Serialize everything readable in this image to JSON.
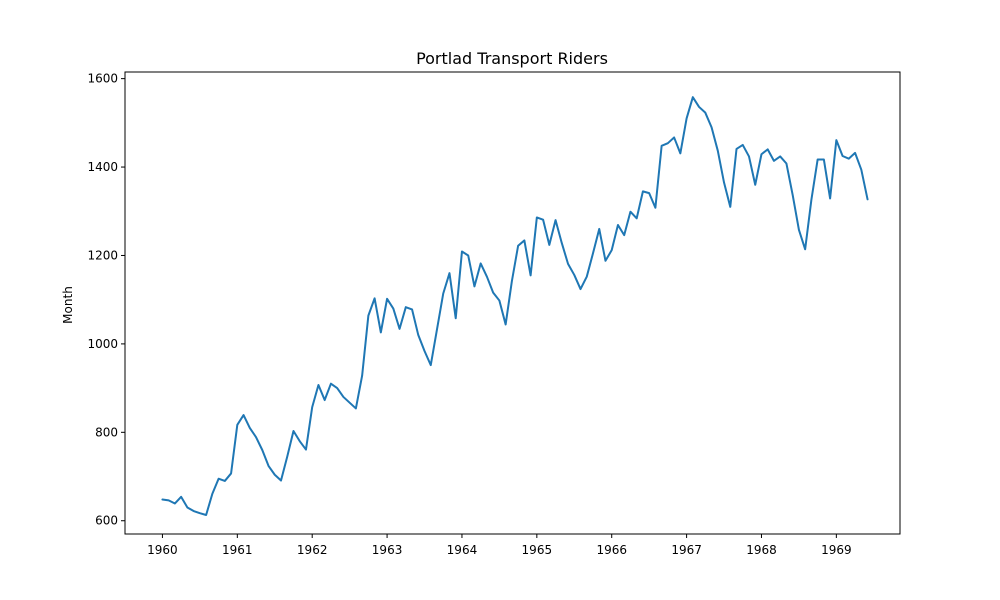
{
  "chart_data": {
    "type": "line",
    "title": "Portlad Transport Riders",
    "xlabel": "",
    "ylabel": "Month",
    "xlim": [
      1959.5,
      1969.85
    ],
    "ylim": [
      570,
      1615
    ],
    "xticks": [
      1960,
      1961,
      1962,
      1963,
      1964,
      1965,
      1966,
      1967,
      1968,
      1969
    ],
    "xtick_labels": [
      "1960",
      "1961",
      "1962",
      "1963",
      "1964",
      "1965",
      "1966",
      "1967",
      "1968",
      "1969"
    ],
    "yticks": [
      600,
      800,
      1000,
      1200,
      1400,
      1600
    ],
    "ytick_labels": [
      "600",
      "800",
      "1000",
      "1200",
      "1400",
      "1600"
    ],
    "grid": false,
    "legend": "none",
    "line_color": "#1f77b4",
    "x_start": "1960-01",
    "x_step": "1 month",
    "series": [
      {
        "values": [
          648,
          646,
          639,
          654,
          630,
          622,
          617,
          613,
          661,
          695,
          690,
          707,
          817,
          839,
          810,
          789,
          760,
          724,
          704,
          691,
          745,
          803,
          780,
          761,
          857,
          907,
          873,
          910,
          900,
          880,
          867,
          854,
          928,
          1064,
          1103,
          1026,
          1102,
          1080,
          1034,
          1083,
          1078,
          1020,
          984,
          952,
          1033,
          1114,
          1160,
          1058,
          1209,
          1200,
          1130,
          1182,
          1152,
          1116,
          1098,
          1044,
          1142,
          1222,
          1234,
          1155,
          1286,
          1281,
          1224,
          1280,
          1228,
          1181,
          1156,
          1124,
          1152,
          1205,
          1260,
          1188,
          1212,
          1269,
          1246,
          1299,
          1284,
          1345,
          1341,
          1308,
          1448,
          1454,
          1467,
          1431,
          1510,
          1558,
          1536,
          1523,
          1490,
          1437,
          1365,
          1310,
          1441,
          1450,
          1424,
          1360,
          1429,
          1440,
          1414,
          1424,
          1408,
          1337,
          1258,
          1214,
          1326,
          1417,
          1417,
          1329,
          1461,
          1425,
          1419,
          1432,
          1394,
          1327
        ]
      }
    ]
  }
}
